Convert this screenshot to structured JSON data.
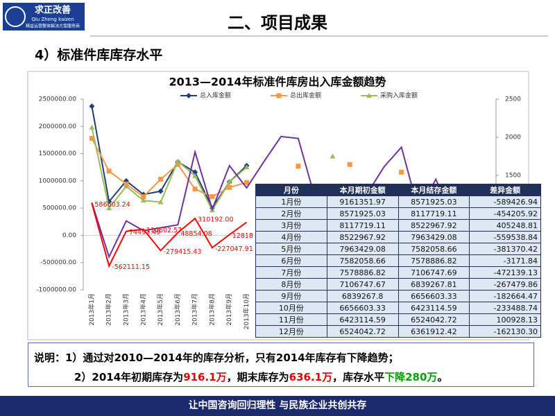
{
  "header": {
    "logo_title": "求正改善",
    "logo_subtitle": "Qiu Zheng kaizen",
    "logo_tagline": "精益运营整体解决方案服务商",
    "title": "二、项目成果",
    "subtitle": "4）标准件库库存水平"
  },
  "chart_data": {
    "type": "line",
    "title": "2013—2014年标准件库房出入库金额趋势",
    "categories": [
      "2013年1月",
      "2013年2月",
      "2013年3月",
      "2013年4月",
      "2013年5月",
      "2013年6月",
      "2013年7月",
      "2013年8月",
      "2013年9月",
      "2013年10月",
      null,
      null,
      null,
      null,
      null,
      null,
      null,
      null,
      null,
      null,
      null,
      null,
      null,
      null
    ],
    "series": [
      {
        "name": "总入库金额",
        "color": "#1f3d7a",
        "marker": "diamond",
        "values": [
          2370000,
          620000,
          1000000,
          750000,
          810000,
          1350000,
          1160000,
          500000,
          980000,
          1280000,
          null,
          null,
          null,
          null,
          null,
          null,
          null,
          null,
          null,
          null,
          null,
          null,
          null,
          null
        ]
      },
      {
        "name": "总出库金额",
        "color": "#f79646",
        "marker": "square",
        "values": [
          1780000,
          1180000,
          940000,
          710000,
          1030000,
          1300000,
          850000,
          710000,
          880000,
          970000,
          null,
          null,
          1270000,
          null,
          null,
          1300000,
          null,
          null,
          1160000,
          null,
          null,
          null,
          null,
          null
        ]
      },
      {
        "name": "采购入库金额",
        "color": "#9bbb59",
        "marker": "triangle",
        "values": [
          1980000,
          500000,
          900000,
          640000,
          610000,
          1360000,
          1090000,
          460000,
          980000,
          1250000,
          null,
          null,
          null,
          null,
          1450000,
          null,
          null,
          null,
          null,
          null,
          null,
          null,
          null,
          null
        ]
      },
      {
        "color": "#7030a0",
        "axis": "y2",
        "values": [
          1145,
          433,
          903,
          776,
          814,
          852,
          1807,
          1056,
          1628,
          1336,
          1679,
          2010,
          1985,
          1183,
          1094,
          941,
          1260,
          1616,
          1870,
          1031,
          1450,
          929,
          1120,
          null
        ]
      },
      {
        "color": "#ff0000",
        "values": [
          586003.24,
          -562111.15,
          74493.49,
          110602.57,
          -279415.43,
          48854.08,
          310192.0,
          -227047.91,
          12818,
          240000,
          null,
          null,
          null,
          null,
          null,
          null,
          null,
          null,
          null,
          null,
          null,
          null,
          null,
          null
        ],
        "value_labels": [
          "586003.24",
          "-562111.15",
          "74493.49",
          "110602.57",
          "-279415.43",
          "48854.08",
          "310192.00",
          "-227047.91",
          "12818",
          null,
          null,
          null,
          null,
          null,
          null,
          null,
          null,
          null,
          null,
          null,
          null,
          null,
          null,
          null
        ]
      }
    ],
    "ylim": [
      -1000000,
      2500000
    ],
    "yticks": [
      {
        "value": -1000000,
        "label": "-1000000.00"
      },
      {
        "value": -500000,
        "label": "-500000.00"
      },
      {
        "value": 0,
        "label": "0.00"
      },
      {
        "value": 500000,
        "label": "500000.00"
      },
      {
        "value": 1000000,
        "label": "1000000.00"
      },
      {
        "value": 1500000,
        "label": "1500000.00"
      },
      {
        "value": 2000000,
        "label": "2000000.00"
      },
      {
        "value": 2500000,
        "label": "2500000.00"
      }
    ],
    "y2lim": [
      0,
      2500
    ],
    "y2ticks": [
      1000,
      1500,
      2000,
      2500
    ],
    "legend": "top",
    "grid": false
  },
  "table": {
    "header": [
      "月份",
      "本月期初金额",
      "本月结存金额",
      "差异金额"
    ],
    "rows": [
      [
        "1月份",
        "9161351.97",
        "8571925.03",
        "-589426.94"
      ],
      [
        "2月份",
        "8571925.03",
        "8117719.11",
        "-454205.92"
      ],
      [
        "3月份",
        "8117719.11",
        "8522967.92",
        "405248.81"
      ],
      [
        "4月份",
        "8522967.92",
        "7963429.08",
        "-559538.84"
      ],
      [
        "5月份",
        "7963429.08",
        "7582058.66",
        "-381370.42"
      ],
      [
        "6月份",
        "7582058.66",
        "7578886.82",
        "-3171.84"
      ],
      [
        "7月份",
        "7578886.82",
        "7106747.69",
        "-472139.13"
      ],
      [
        "8月份",
        "7106747.67",
        "6839267.81",
        "-267479.86"
      ],
      [
        "9月份",
        "6839267.8",
        "6656603.33",
        "-182664.47"
      ],
      [
        "10月份",
        "6656603.33",
        "6423114.59",
        "-233488.74"
      ],
      [
        "11月份",
        "6423114.59",
        "6524042.72",
        "100928.13"
      ],
      [
        "12月份",
        "6524042.72",
        "6361912.42",
        "-162130.30"
      ]
    ]
  },
  "notes": {
    "line1": "说明：1）通过对2010—2014年的库存分析，只有2014年库存有下降趋势；",
    "line2": [
      "2）2014年初期库存为",
      "916.1万",
      "，期末库存为",
      "636.1万",
      "，库存水平",
      "下降280万",
      "。"
    ]
  },
  "footer": "让中国咨询回归理性 与民族企业共创共存"
}
